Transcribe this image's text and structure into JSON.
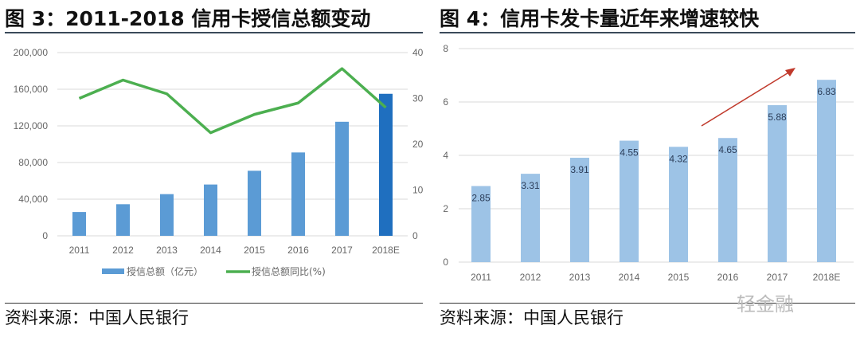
{
  "left": {
    "title": "图 3：2011-2018 信用卡授信总额变动",
    "source": "资料来源：中国人民银行"
  },
  "right": {
    "title": "图 4：信用卡发卡量近年来增速较快",
    "source": "资料来源：中国人民银行"
  },
  "watermark": "轻金融",
  "chart_data": [
    {
      "type": "bar+line",
      "categories": [
        "2011",
        "2012",
        "2013",
        "2014",
        "2015",
        "2016",
        "2017",
        "2018E"
      ],
      "series": [
        {
          "name": "授信总额（亿元）",
          "type": "bar",
          "axis": "left",
          "values": [
            26000,
            34500,
            45500,
            56000,
            71000,
            91000,
            124500,
            155000
          ],
          "color": "#5b9bd5",
          "highlight_last_color": "#1f6fbf"
        },
        {
          "name": "授信总额同比(%)",
          "type": "line",
          "axis": "right",
          "values": [
            30,
            34,
            31,
            22.5,
            26.5,
            29,
            36.5,
            28
          ],
          "color": "#4caf50"
        }
      ],
      "ylim": [
        0,
        200000
      ],
      "yticks": [
        "0",
        "40,000",
        "80,000",
        "120,000",
        "160,000",
        "200,000"
      ],
      "y2lim": [
        0,
        40
      ],
      "y2ticks": [
        "0",
        "10",
        "20",
        "30",
        "40"
      ],
      "grid": true,
      "legend": "bottom"
    },
    {
      "type": "bar",
      "categories": [
        "2011",
        "2012",
        "2013",
        "2014",
        "2015",
        "2016",
        "2017",
        "2018E"
      ],
      "values": [
        2.85,
        3.31,
        3.91,
        4.55,
        4.32,
        4.65,
        5.88,
        6.83
      ],
      "data_labels": [
        "2.85",
        "3.31",
        "3.91",
        "4.55",
        "4.32",
        "4.65",
        "5.88",
        "6.83"
      ],
      "ylim": [
        0,
        8
      ],
      "yticks": [
        "0",
        "2",
        "4",
        "6",
        "8"
      ],
      "color": "#9dc3e6",
      "annotation": "red upward trend arrow",
      "annotation_color": "#c0392b",
      "grid": true
    }
  ]
}
